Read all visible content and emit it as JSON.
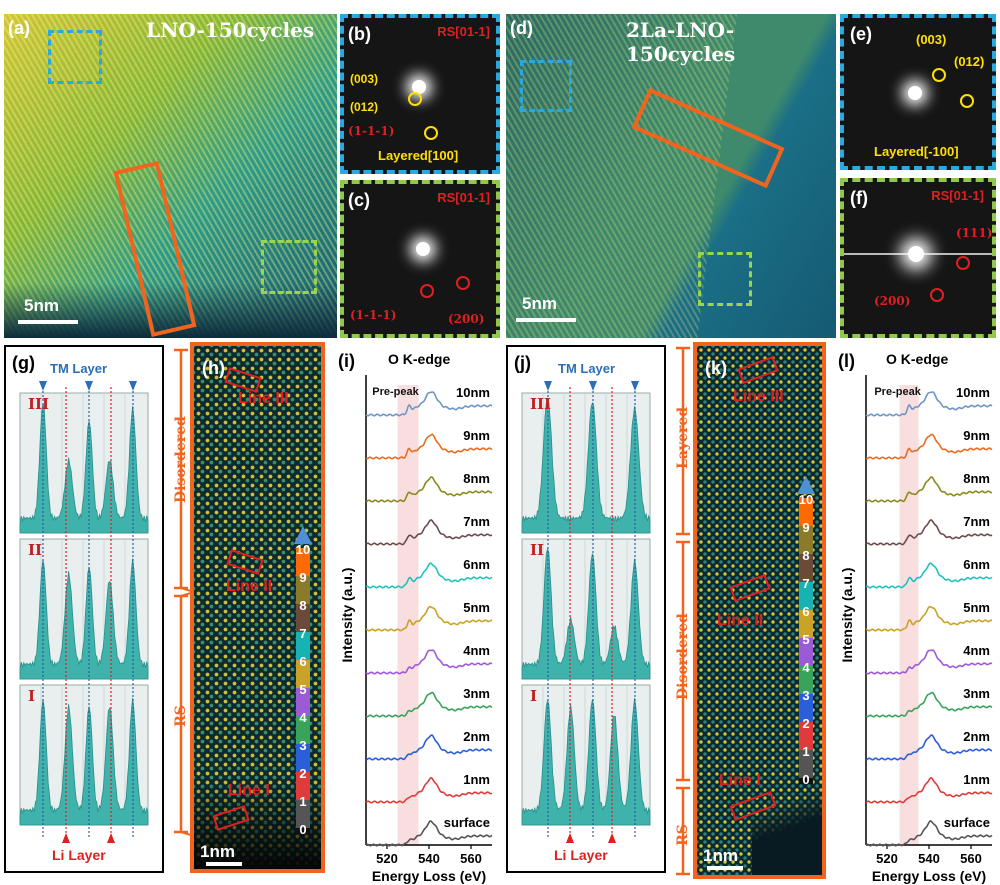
{
  "panels": {
    "a": {
      "label": "(a)",
      "title": "LNO-150cycles",
      "scale": "5nm"
    },
    "b": {
      "label": "(b)",
      "zone_top": "RS[01-1]",
      "zone_bottom": "Layered[100]",
      "spots": [
        "(003)",
        "(012)",
        "(1-1-1)"
      ]
    },
    "c": {
      "label": "(c)",
      "zone_top": "RS[01-1]",
      "spots": [
        "(1-1-1)",
        "(200)"
      ]
    },
    "d": {
      "label": "(d)",
      "title": "2La-LNO-150cycles",
      "scale": "5nm"
    },
    "e": {
      "label": "(e)",
      "zone_bottom": "Layered[-100]",
      "spots": [
        "(003)",
        "(012)"
      ]
    },
    "f": {
      "label": "(f)",
      "zone_top": "RS[01-1]",
      "spots": [
        "(111)",
        "(200)"
      ]
    },
    "g": {
      "label": "(g)",
      "top_label": "TM Layer",
      "bottom_label": "Li Layer",
      "lines": [
        "III",
        "II",
        "I"
      ]
    },
    "h": {
      "label": "(h)",
      "lines": [
        "Line III",
        "Line II",
        "Line I"
      ],
      "scale": "1nm",
      "regions": [
        "Disordered",
        "RS"
      ]
    },
    "i": {
      "label": "(i)",
      "title": "O K-edge",
      "prepeak": "Pre-peak",
      "ylabel": "Intensity (a.u.)",
      "xlabel": "Energy Loss (eV)",
      "xticks": [
        "520",
        "540",
        "560"
      ]
    },
    "j": {
      "label": "(j)",
      "top_label": "TM Layer",
      "bottom_label": "Li Layer",
      "lines": [
        "III",
        "II",
        "I"
      ]
    },
    "k": {
      "label": "(k)",
      "lines": [
        "Line III",
        "Line II",
        "Line I"
      ],
      "scale": "1nm",
      "regions": [
        "Layered",
        "Disordered",
        "RS"
      ]
    },
    "l": {
      "label": "(l)",
      "title": "O K-edge",
      "prepeak": "Pre-peak",
      "ylabel": "Intensity (a.u.)",
      "xlabel": "Energy Loss (eV)",
      "xticks": [
        "520",
        "540",
        "560"
      ]
    }
  },
  "colorbar": {
    "ticks": [
      "10",
      "9",
      "8",
      "7",
      "6",
      "5",
      "4",
      "3",
      "2",
      "1",
      "0"
    ],
    "colors": [
      "#ff6a00",
      "#8a7a2a",
      "#6b4a3a",
      "#17b3b3",
      "#c9a227",
      "#9b5bd6",
      "#3aa35b",
      "#2b5fd9",
      "#e03b3b",
      "#555555"
    ]
  },
  "chart_data": [
    {
      "type": "line",
      "title": "O K-edge",
      "xlabel": "Energy Loss (eV)",
      "ylabel": "Intensity (a.u.)",
      "xlim": [
        510,
        570
      ],
      "prepeak_range": [
        525,
        535
      ],
      "series": [
        {
          "name": "10nm",
          "color": "#6e95c7"
        },
        {
          "name": "9nm",
          "color": "#e86d1f"
        },
        {
          "name": "8nm",
          "color": "#8a8a1e"
        },
        {
          "name": "7nm",
          "color": "#6e4b4b"
        },
        {
          "name": "6nm",
          "color": "#22c1c1"
        },
        {
          "name": "5nm",
          "color": "#c9a227"
        },
        {
          "name": "4nm",
          "color": "#a05ad8"
        },
        {
          "name": "3nm",
          "color": "#3aa35b"
        },
        {
          "name": "2nm",
          "color": "#2b5fd9"
        },
        {
          "name": "1nm",
          "color": "#e03b3b"
        },
        {
          "name": "surface",
          "color": "#555555"
        }
      ]
    },
    {
      "type": "line",
      "title": "O K-edge",
      "xlabel": "Energy Loss (eV)",
      "ylabel": "Intensity (a.u.)",
      "xlim": [
        510,
        570
      ],
      "prepeak_range": [
        526,
        535
      ],
      "series": [
        {
          "name": "10nm",
          "color": "#6e95c7"
        },
        {
          "name": "9nm",
          "color": "#e86d1f"
        },
        {
          "name": "8nm",
          "color": "#8a8a1e"
        },
        {
          "name": "7nm",
          "color": "#6e4b4b"
        },
        {
          "name": "6nm",
          "color": "#22c1c1"
        },
        {
          "name": "5nm",
          "color": "#c9a227"
        },
        {
          "name": "4nm",
          "color": "#a05ad8"
        },
        {
          "name": "3nm",
          "color": "#3aa35b"
        },
        {
          "name": "2nm",
          "color": "#2b5fd9"
        },
        {
          "name": "1nm",
          "color": "#e03b3b"
        },
        {
          "name": "surface",
          "color": "#555555"
        }
      ]
    }
  ]
}
